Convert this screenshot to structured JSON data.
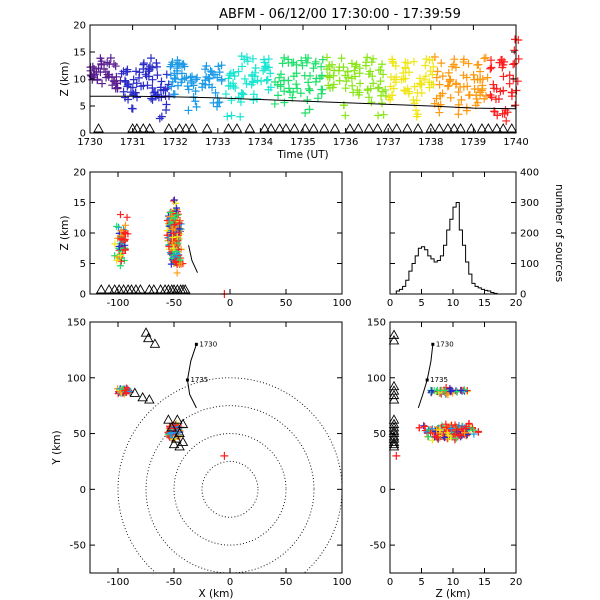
{
  "title": "ABFM - 06/12/00 17:30:00 - 17:39:59",
  "chart_data": [
    {
      "id": "time-height",
      "type": "scatter",
      "xlabel": "Time (UT)",
      "ylabel": "Z (km)",
      "xlim": [
        1730,
        1740
      ],
      "ylim": [
        0,
        20
      ],
      "xticks": [
        1730,
        1731,
        1732,
        1733,
        1734,
        1735,
        1736,
        1737,
        1738,
        1739,
        1740
      ],
      "yticks": [
        0,
        5,
        10,
        15,
        20
      ],
      "color_scale": [
        "#5a1f8f",
        "#2b2bc8",
        "#1e9be6",
        "#19e6d2",
        "#1fe06a",
        "#8ae619",
        "#f0e619",
        "#ff9a10",
        "#ff1e1e"
      ],
      "columns": [
        {
          "t": 1730.12,
          "lo": 9.5,
          "hi": 13
        },
        {
          "t": 1730.35,
          "lo": 9,
          "hi": 14
        },
        {
          "t": 1730.6,
          "lo": 8,
          "hi": 14
        },
        {
          "t": 1730.85,
          "lo": 5.5,
          "hi": 12
        },
        {
          "t": 1731.1,
          "lo": 4,
          "hi": 12
        },
        {
          "t": 1731.35,
          "lo": 7,
          "hi": 14
        },
        {
          "t": 1731.55,
          "lo": 6,
          "hi": 13
        },
        {
          "t": 1731.75,
          "lo": 2.5,
          "hi": 11
        },
        {
          "t": 1731.95,
          "lo": 7,
          "hi": 13.5
        },
        {
          "t": 1732.15,
          "lo": 8,
          "hi": 13
        },
        {
          "t": 1732.4,
          "lo": 4,
          "hi": 11
        },
        {
          "t": 1732.75,
          "lo": 8,
          "hi": 13
        },
        {
          "t": 1733.0,
          "lo": 2.5,
          "hi": 13
        },
        {
          "t": 1733.3,
          "lo": 3,
          "hi": 13
        },
        {
          "t": 1733.6,
          "lo": 3,
          "hi": 14.5
        },
        {
          "t": 1733.9,
          "lo": 6,
          "hi": 15
        },
        {
          "t": 1734.15,
          "lo": 6.5,
          "hi": 14
        },
        {
          "t": 1734.45,
          "lo": 5,
          "hi": 14
        },
        {
          "t": 1734.75,
          "lo": 6,
          "hi": 14
        },
        {
          "t": 1735.05,
          "lo": 3.5,
          "hi": 14
        },
        {
          "t": 1735.35,
          "lo": 5.5,
          "hi": 14
        },
        {
          "t": 1735.65,
          "lo": 7,
          "hi": 14
        },
        {
          "t": 1735.95,
          "lo": 3,
          "hi": 14
        },
        {
          "t": 1736.25,
          "lo": 6.5,
          "hi": 14
        },
        {
          "t": 1736.55,
          "lo": 5,
          "hi": 14
        },
        {
          "t": 1736.85,
          "lo": 3,
          "hi": 13
        },
        {
          "t": 1737.1,
          "lo": 4.5,
          "hi": 14.5
        },
        {
          "t": 1737.4,
          "lo": 7,
          "hi": 14
        },
        {
          "t": 1737.7,
          "lo": 3,
          "hi": 14
        },
        {
          "t": 1737.95,
          "lo": 6.5,
          "hi": 14
        },
        {
          "t": 1738.2,
          "lo": 3.5,
          "hi": 14.5
        },
        {
          "t": 1738.5,
          "lo": 6.5,
          "hi": 14
        },
        {
          "t": 1738.75,
          "lo": 3,
          "hi": 14
        },
        {
          "t": 1739.0,
          "lo": 2.5,
          "hi": 13.5
        },
        {
          "t": 1739.25,
          "lo": 4.5,
          "hi": 14
        },
        {
          "t": 1739.5,
          "lo": 3,
          "hi": 13.5
        },
        {
          "t": 1739.75,
          "lo": 1.5,
          "hi": 14
        },
        {
          "t": 1739.95,
          "lo": 4,
          "hi": 17.5
        }
      ],
      "reference_line": {
        "t": [
          1730,
          1731,
          1732,
          1733,
          1734,
          1735,
          1736,
          1737,
          1738,
          1739,
          1740
        ],
        "z": [
          6.8,
          6.8,
          6.7,
          6.5,
          6.2,
          5.9,
          5.6,
          5.3,
          5.0,
          4.6,
          4.5
        ]
      },
      "stations_t": [
        1730.2,
        1731.0,
        1731.1,
        1731.25,
        1731.4,
        1731.85,
        1732.1,
        1732.25,
        1732.4,
        1732.75,
        1733.25,
        1733.45,
        1733.75,
        1734.1,
        1734.25,
        1734.45,
        1734.6,
        1734.8,
        1735.05,
        1735.25,
        1735.5,
        1735.75,
        1736.1,
        1736.3,
        1736.55,
        1736.75,
        1737.0,
        1737.2,
        1737.45,
        1737.7,
        1738.0,
        1738.2,
        1738.4,
        1738.55,
        1738.7,
        1738.95,
        1739.2,
        1739.35,
        1739.55,
        1739.7,
        1739.9
      ]
    },
    {
      "id": "x-z",
      "type": "scatter",
      "xlabel": "",
      "ylabel": "Z (km)",
      "xlim": [
        -125,
        100
      ],
      "ylim": [
        0,
        20
      ],
      "xticks": [
        -100,
        -50,
        0,
        50,
        100
      ],
      "yticks": [
        0,
        5,
        10,
        15,
        20
      ],
      "clusters": [
        {
          "cx": -96,
          "cy": 8.5,
          "sx": 5,
          "sy": 3.3,
          "n": 60
        },
        {
          "cx": -50,
          "cy": 10,
          "sx": 5,
          "sy": 4.2,
          "n": 260
        },
        {
          "cx": -48,
          "cy": 6,
          "sx": 4,
          "sy": 2,
          "n": 60
        }
      ],
      "isolated": [
        {
          "x": -5,
          "z": 0
        }
      ],
      "stations_x": [
        -115,
        -108,
        -103,
        -99,
        -95,
        -91,
        -88,
        -84,
        -80,
        -72,
        -68,
        -62,
        -58,
        -55,
        -52,
        -50,
        -47,
        -44,
        -42,
        -40
      ]
    },
    {
      "id": "histogram",
      "type": "bar",
      "xlabel": "",
      "ylabel": "number of sources",
      "xlim": [
        0,
        20
      ],
      "ylim": [
        0,
        400
      ],
      "xticks": [
        0,
        5,
        10,
        15,
        20
      ],
      "yticks": [
        0,
        100,
        200,
        300,
        400
      ],
      "bin_edges": [
        0,
        0.5,
        1,
        1.5,
        2,
        2.5,
        3,
        3.5,
        4,
        4.5,
        5,
        5.5,
        6,
        6.5,
        7,
        7.5,
        8,
        8.5,
        9,
        9.5,
        10,
        10.5,
        11,
        11.5,
        12,
        12.5,
        13,
        13.5,
        14,
        14.5,
        15,
        15.5,
        16,
        16.5,
        17,
        17.5,
        18,
        18.5,
        19,
        19.5,
        20
      ],
      "counts": [
        0,
        0,
        10,
        15,
        25,
        45,
        75,
        100,
        125,
        150,
        155,
        145,
        125,
        115,
        105,
        110,
        125,
        160,
        210,
        245,
        285,
        300,
        210,
        160,
        105,
        65,
        35,
        25,
        20,
        15,
        12,
        10,
        5,
        2,
        0,
        0,
        0,
        0,
        0,
        0
      ]
    },
    {
      "id": "plan-view",
      "type": "scatter",
      "xlabel": "X (km)",
      "ylabel": "Y (km)",
      "xlim": [
        -125,
        100
      ],
      "ylim": [
        -75,
        150
      ],
      "xticks": [
        -100,
        -50,
        0,
        50,
        100
      ],
      "yticks": [
        -50,
        0,
        50,
        100,
        150
      ],
      "range_rings_km": [
        25,
        50,
        75,
        100
      ],
      "clusters": [
        {
          "cx": -95,
          "cy": 88,
          "sx": 6,
          "sy": 3,
          "n": 50
        },
        {
          "cx": -50,
          "cy": 52,
          "sx": 5,
          "sy": 6,
          "n": 160
        }
      ],
      "isolated": [
        {
          "x": -5,
          "y": 30
        }
      ],
      "stations": [
        {
          "x": -73,
          "y": 135
        },
        {
          "x": -75,
          "y": 140
        },
        {
          "x": -67,
          "y": 130
        },
        {
          "x": -85,
          "y": 86
        },
        {
          "x": -78,
          "y": 82
        },
        {
          "x": -72,
          "y": 80
        },
        {
          "x": -55,
          "y": 62
        },
        {
          "x": -47,
          "y": 62
        },
        {
          "x": -42,
          "y": 58
        },
        {
          "x": -52,
          "y": 55
        },
        {
          "x": -45,
          "y": 50
        },
        {
          "x": -48,
          "y": 45
        },
        {
          "x": -42,
          "y": 42
        },
        {
          "x": -50,
          "y": 40
        },
        {
          "x": -45,
          "y": 38
        }
      ],
      "track": [
        {
          "x": -30,
          "y": 130
        },
        {
          "x": -35,
          "y": 115
        },
        {
          "x": -38,
          "y": 98
        },
        {
          "x": -36,
          "y": 85
        },
        {
          "x": -30,
          "y": 73
        }
      ],
      "track_labels": [
        {
          "text": "1730",
          "x": -30,
          "y": 130
        },
        {
          "text": "1735",
          "x": -38,
          "y": 98
        }
      ]
    },
    {
      "id": "y-z",
      "type": "scatter",
      "xlabel": "Z (km)",
      "ylabel": "",
      "xlim": [
        0,
        20
      ],
      "ylim": [
        -75,
        150
      ],
      "xticks": [
        0,
        5,
        10,
        15,
        20
      ],
      "yticks": [
        -50,
        0,
        50,
        100,
        150
      ],
      "clusters": [
        {
          "cx": 9,
          "cy": 88,
          "sx": 3,
          "sy": 2.5,
          "n": 50
        },
        {
          "cx": 9.5,
          "cy": 52,
          "sx": 3.6,
          "sy": 6,
          "n": 220
        }
      ],
      "isolated": [
        {
          "z": 1,
          "y": 30
        }
      ],
      "stations_y": [
        138,
        133,
        92,
        88,
        84,
        80,
        62,
        58,
        55,
        52,
        50,
        47,
        45,
        42,
        40,
        38
      ],
      "track": [
        {
          "z": 6.8,
          "y": 130
        },
        {
          "z": 6.5,
          "y": 115
        },
        {
          "z": 5.9,
          "y": 98
        },
        {
          "z": 5.2,
          "y": 85
        },
        {
          "z": 4.5,
          "y": 73
        }
      ],
      "track_labels": [
        {
          "text": "1730",
          "z": 6.8,
          "y": 130
        },
        {
          "text": "1735",
          "z": 5.9,
          "y": 98
        }
      ]
    }
  ]
}
